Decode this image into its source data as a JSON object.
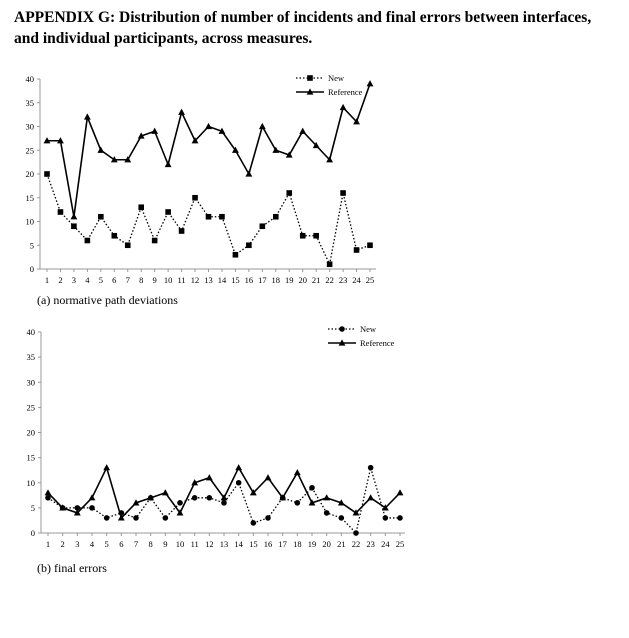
{
  "heading": "APPENDIX G: Distribution of number of incidents and final errors between interfaces, and individual participants, across measures.",
  "chart_data": [
    {
      "type": "line",
      "caption": "(a)  normative path deviations",
      "x": [
        1,
        2,
        3,
        4,
        5,
        6,
        7,
        8,
        9,
        10,
        11,
        12,
        13,
        14,
        15,
        16,
        17,
        18,
        19,
        20,
        21,
        22,
        23,
        24,
        25
      ],
      "ylim": [
        0,
        40
      ],
      "yticks": [
        0,
        5,
        10,
        15,
        20,
        25,
        30,
        35,
        40
      ],
      "grid": false,
      "legend": "top-right",
      "series": [
        {
          "name": "New",
          "style": "dotted",
          "marker": "square",
          "values": [
            20,
            12,
            9,
            6,
            11,
            7,
            5,
            13,
            6,
            12,
            8,
            15,
            11,
            11,
            3,
            5,
            9,
            11,
            16,
            7,
            7,
            1,
            16,
            4,
            5
          ]
        },
        {
          "name": "Reference",
          "style": "solid",
          "marker": "triangle",
          "values": [
            27,
            27,
            11,
            32,
            25,
            23,
            23,
            28,
            29,
            22,
            33,
            27,
            30,
            29,
            25,
            20,
            30,
            25,
            24,
            29,
            26,
            23,
            34,
            31,
            39
          ]
        }
      ]
    },
    {
      "type": "line",
      "caption": "(b)  final errors",
      "x": [
        1,
        2,
        3,
        4,
        5,
        6,
        7,
        8,
        9,
        10,
        11,
        12,
        13,
        14,
        15,
        16,
        17,
        18,
        19,
        20,
        21,
        22,
        23,
        24,
        25
      ],
      "ylim": [
        0,
        40
      ],
      "yticks": [
        0,
        5,
        10,
        15,
        20,
        25,
        30,
        35,
        40
      ],
      "grid": false,
      "legend": "top-right",
      "series": [
        {
          "name": "New",
          "style": "dotted",
          "marker": "circle",
          "values": [
            7,
            5,
            5,
            5,
            3,
            4,
            3,
            7,
            3,
            6,
            7,
            7,
            6,
            10,
            2,
            3,
            7,
            6,
            9,
            4,
            3,
            0,
            13,
            3,
            3
          ]
        },
        {
          "name": "Reference",
          "style": "solid",
          "marker": "triangle",
          "values": [
            8,
            5,
            4,
            7,
            13,
            3,
            6,
            7,
            8,
            4,
            10,
            11,
            7,
            13,
            8,
            11,
            7,
            12,
            6,
            7,
            6,
            4,
            7,
            5,
            8
          ]
        }
      ]
    }
  ]
}
